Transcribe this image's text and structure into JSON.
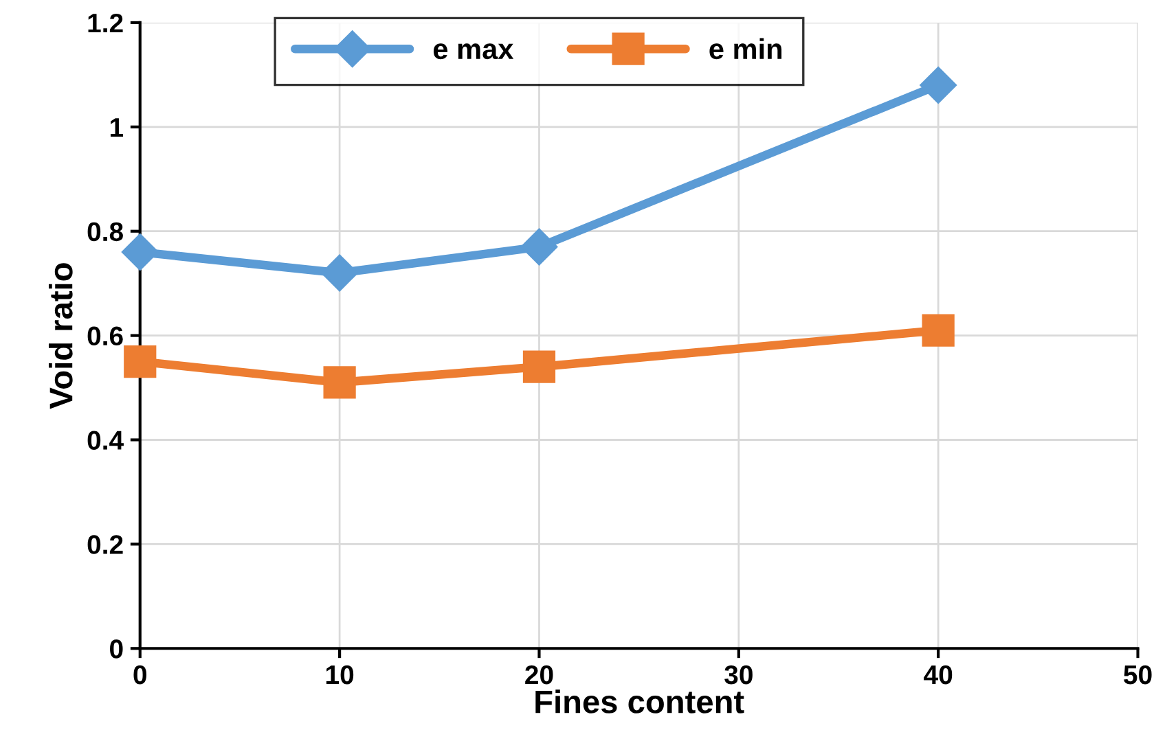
{
  "chart_data": {
    "type": "line",
    "xlabel": "Fines content",
    "ylabel": "Void ratio",
    "series": [
      {
        "name": "e max",
        "color": "#5b9bd5",
        "marker": "diamond",
        "x": [
          0,
          10,
          20,
          40
        ],
        "values": [
          0.76,
          0.72,
          0.77,
          1.08
        ]
      },
      {
        "name": "e min",
        "color": "#ed7d31",
        "marker": "square",
        "x": [
          0,
          10,
          20,
          40
        ],
        "values": [
          0.55,
          0.51,
          0.54,
          0.61
        ]
      }
    ],
    "xlim": [
      0,
      50
    ],
    "xticks": [
      0,
      10,
      20,
      30,
      40,
      50
    ],
    "ylim": [
      0,
      1.2
    ],
    "yticks": [
      0,
      0.2,
      0.4,
      0.6,
      0.8,
      1,
      1.2
    ],
    "grid": true,
    "legend": "top",
    "line_style": "solid"
  }
}
